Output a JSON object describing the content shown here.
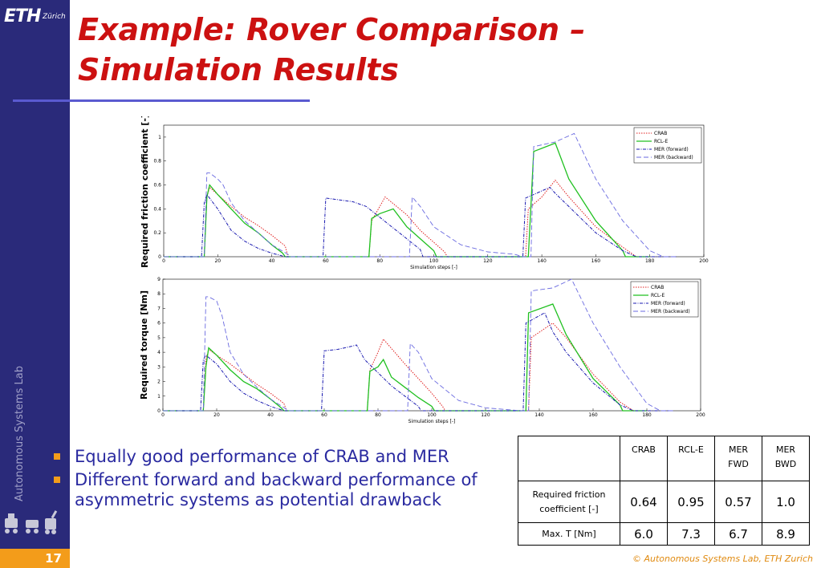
{
  "brand": {
    "logo": "ETH",
    "logo_sub": "Zürich",
    "lab_vertical": "Autonomous Systems Lab"
  },
  "title_line1": "Example: Rover Comparison –",
  "title_line2": "Simulation Results",
  "footer": {
    "page": "17",
    "copyright": "© Autonomous Systems Lab, ETH Zurich"
  },
  "colors": {
    "sidebar": "#2a2a7a",
    "accent": "#f39c1a",
    "title": "#cc1111",
    "bullet_text": "#2a2aa0",
    "crab": "#e02020",
    "rcle": "#20c020",
    "mer_fwd": "#1a1ab0",
    "mer_bwd": "#6a6ae0"
  },
  "chart_data": [
    {
      "type": "line",
      "ylabel": "Required friction coefficient [-]",
      "xlabel": "Simulation steps [-]",
      "xlim": [
        0,
        200
      ],
      "ylim": [
        0,
        1.1
      ],
      "xticks": [
        0,
        20,
        40,
        60,
        80,
        100,
        120,
        140,
        160,
        180,
        200
      ],
      "yticks": [
        0,
        0.2,
        0.4,
        0.6,
        0.8,
        1
      ],
      "yticklabels": [
        "0",
        "0.2",
        "0.4",
        "0.6",
        "0.8",
        "1"
      ],
      "legend_position": "top-right",
      "series": [
        {
          "name": "CRAB",
          "x": [
            0,
            15,
            16,
            17,
            20,
            25,
            30,
            35,
            40,
            45,
            46,
            75,
            76,
            77,
            82,
            90,
            95,
            100,
            104,
            105,
            133,
            134,
            135,
            140,
            145,
            150,
            160,
            170,
            175,
            180
          ],
          "y": [
            0,
            0,
            0.5,
            0.58,
            0.52,
            0.42,
            0.33,
            0.26,
            0.18,
            0.09,
            0,
            0,
            0,
            0.3,
            0.5,
            0.35,
            0.22,
            0.12,
            0.04,
            0,
            0,
            0,
            0.4,
            0.5,
            0.64,
            0.5,
            0.25,
            0.08,
            0,
            0
          ]
        },
        {
          "name": "RCL-E",
          "x": [
            0,
            15,
            16,
            17,
            20,
            25,
            30,
            35,
            40,
            44,
            45,
            75,
            76,
            77,
            80,
            85,
            90,
            95,
            100,
            101,
            134,
            135,
            137,
            145,
            150,
            160,
            170,
            171,
            180
          ],
          "y": [
            0,
            0,
            0.5,
            0.6,
            0.52,
            0.4,
            0.28,
            0.2,
            0.1,
            0.03,
            0,
            0,
            0,
            0.32,
            0.36,
            0.4,
            0.25,
            0.15,
            0.05,
            0,
            0,
            0,
            0.88,
            0.95,
            0.65,
            0.3,
            0.05,
            0,
            0
          ]
        },
        {
          "name": "MER (forward)",
          "x": [
            0,
            14,
            15,
            16,
            20,
            25,
            30,
            35,
            40,
            45,
            58,
            59,
            60,
            70,
            75,
            80,
            85,
            90,
            95,
            96,
            132,
            133,
            134,
            143,
            145,
            150,
            160,
            170,
            175,
            190
          ],
          "y": [
            0,
            0,
            0.45,
            0.52,
            0.4,
            0.22,
            0.13,
            0.07,
            0.03,
            0,
            0,
            0,
            0.49,
            0.46,
            0.42,
            0.33,
            0.24,
            0.15,
            0.06,
            0,
            0,
            0,
            0.49,
            0.58,
            0.53,
            0.42,
            0.2,
            0.05,
            0,
            0
          ]
        },
        {
          "name": "MER (backward)",
          "x": [
            0,
            15,
            16,
            17,
            20,
            22,
            25,
            30,
            35,
            40,
            46,
            47,
            90,
            91,
            92,
            95,
            100,
            110,
            120,
            130,
            133,
            135,
            136,
            137,
            145,
            152,
            160,
            170,
            180,
            185,
            190
          ],
          "y": [
            0,
            0,
            0.7,
            0.7,
            0.65,
            0.6,
            0.45,
            0.3,
            0.2,
            0.1,
            0.02,
            0,
            0,
            0,
            0.5,
            0.42,
            0.25,
            0.1,
            0.04,
            0.02,
            0,
            0,
            0,
            0.92,
            0.96,
            1.03,
            0.65,
            0.3,
            0.05,
            0,
            0
          ]
        }
      ]
    },
    {
      "type": "line",
      "ylabel": "Required torque [Nm]",
      "xlabel": "Simulation steps [-]",
      "xlim": [
        0,
        200
      ],
      "ylim": [
        0,
        9
      ],
      "xticks": [
        0,
        20,
        40,
        60,
        80,
        100,
        120,
        140,
        160,
        180,
        200
      ],
      "yticks": [
        0,
        1,
        2,
        3,
        4,
        5,
        6,
        7,
        8,
        9
      ],
      "yticklabels": [
        "0",
        "1",
        "2",
        "3",
        "4",
        "5",
        "6",
        "7",
        "8",
        "9"
      ],
      "legend_position": "top-right",
      "series": [
        {
          "name": "CRAB",
          "x": [
            0,
            15,
            16,
            17,
            20,
            25,
            30,
            35,
            40,
            45,
            46,
            75,
            76,
            77,
            80,
            82,
            90,
            95,
            100,
            104,
            105,
            135,
            136,
            137,
            145,
            150,
            160,
            170,
            175,
            180
          ],
          "y": [
            0,
            0,
            3.5,
            4.2,
            3.8,
            3.2,
            2.5,
            1.8,
            1.2,
            0.5,
            0,
            0,
            0,
            2.8,
            4,
            4.9,
            3.2,
            2.2,
            1.2,
            0.3,
            0,
            0,
            0,
            5,
            6,
            5,
            2.5,
            0.6,
            0,
            0
          ]
        },
        {
          "name": "RCL-E",
          "x": [
            0,
            15,
            16,
            17,
            20,
            25,
            30,
            35,
            40,
            44,
            45,
            75,
            76,
            77,
            80,
            82,
            85,
            90,
            95,
            100,
            101,
            134,
            135,
            136,
            145,
            150,
            160,
            170,
            171,
            180
          ],
          "y": [
            0,
            0,
            3,
            4.3,
            3.8,
            2.8,
            2,
            1.5,
            0.8,
            0.2,
            0,
            0,
            0,
            2.7,
            3,
            3.5,
            2.3,
            1.6,
            0.9,
            0.3,
            0,
            0,
            0,
            6.7,
            7.3,
            5.2,
            2.2,
            0.4,
            0,
            0
          ]
        },
        {
          "name": "MER (forward)",
          "x": [
            0,
            14,
            15,
            16,
            20,
            25,
            30,
            35,
            40,
            45,
            58,
            59,
            60,
            65,
            70,
            72,
            75,
            80,
            85,
            90,
            95,
            96,
            133,
            134,
            135,
            142,
            145,
            150,
            160,
            170,
            175,
            190
          ],
          "y": [
            0,
            0,
            3.5,
            3.8,
            3.2,
            2,
            1.2,
            0.7,
            0.3,
            0,
            0,
            0,
            4.1,
            4.2,
            4.4,
            4.5,
            3.5,
            2.6,
            1.7,
            1,
            0.3,
            0,
            0,
            0,
            6,
            6.7,
            5.4,
            4,
            1.9,
            0.4,
            0,
            0
          ]
        },
        {
          "name": "MER (backward)",
          "x": [
            0,
            15,
            16,
            17,
            20,
            22,
            25,
            30,
            35,
            40,
            46,
            47,
            90,
            91,
            92,
            95,
            100,
            110,
            120,
            130,
            133,
            135,
            136,
            137,
            145,
            152,
            160,
            170,
            180,
            185,
            190
          ],
          "y": [
            0,
            0,
            7.8,
            7.8,
            7.5,
            6.5,
            4,
            2.5,
            1.6,
            0.8,
            0.1,
            0,
            0,
            0,
            4.6,
            4,
            2.2,
            0.7,
            0.2,
            0.05,
            0,
            0,
            0,
            8.2,
            8.4,
            9,
            6,
            3,
            0.5,
            0,
            0
          ]
        }
      ]
    }
  ],
  "bullets": [
    "Equally good performance of CRAB and MER",
    "Different forward and backward performance of asymmetric systems as potential drawback"
  ],
  "table": {
    "headers": [
      "",
      "CRAB",
      "RCL-E",
      "MER FWD",
      "MER BWD"
    ],
    "header_lines": [
      [
        "",
        ""
      ],
      [
        "CRAB",
        ""
      ],
      [
        "RCL-E",
        ""
      ],
      [
        "MER",
        "FWD"
      ],
      [
        "MER",
        "BWD"
      ]
    ],
    "rows": [
      {
        "label_line1": "Required friction",
        "label_line2": "coefficient [-]",
        "values": [
          "0.64",
          "0.95",
          "0.57",
          "1.0"
        ]
      },
      {
        "label_line1": "Max. T [Nm]",
        "label_line2": "",
        "values": [
          "6.0",
          "7.3",
          "6.7",
          "8.9"
        ]
      }
    ]
  }
}
